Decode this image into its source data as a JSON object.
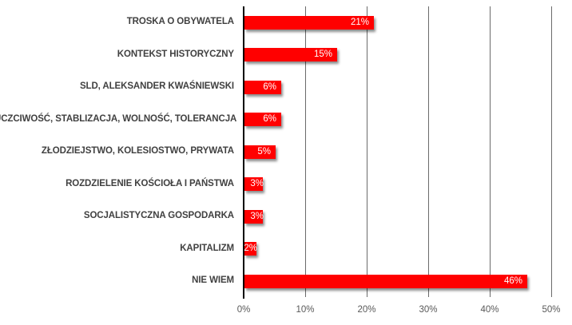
{
  "chart_data": {
    "type": "bar",
    "orientation": "horizontal",
    "title": "",
    "xlabel": "",
    "ylabel": "",
    "categories": [
      "TROSKA O OBYWATELA",
      "KONTEKST HISTORYCZNY",
      "SLD, ALEKSANDER KWAŚNIEWSKI",
      "UCZCIWOŚĆ, STABLIZACJA, WOLNOŚĆ, TOLERANCJA",
      "ZŁODZIEJSTWO, KOLESIOSTWO, PRYWATA",
      "ROZDZIELENIE KOŚCIOŁA I PAŃSTWA",
      "SOCJALISTYCZNA GOSPODARKA",
      "KAPITALIZM",
      "NIE WIEM"
    ],
    "values": [
      21,
      15,
      6,
      6,
      5,
      3,
      3,
      2,
      46
    ],
    "value_labels": [
      "21%",
      "15%",
      "6%",
      "6%",
      "5%",
      "3%",
      "3%",
      "2%",
      "46%"
    ],
    "unit": "%",
    "xlim": [
      0,
      50
    ],
    "x_ticks": [
      "0%",
      "10%",
      "20%",
      "30%",
      "40%",
      "50%"
    ],
    "grid": true,
    "legend": null,
    "bar_color": "#FF0000"
  }
}
